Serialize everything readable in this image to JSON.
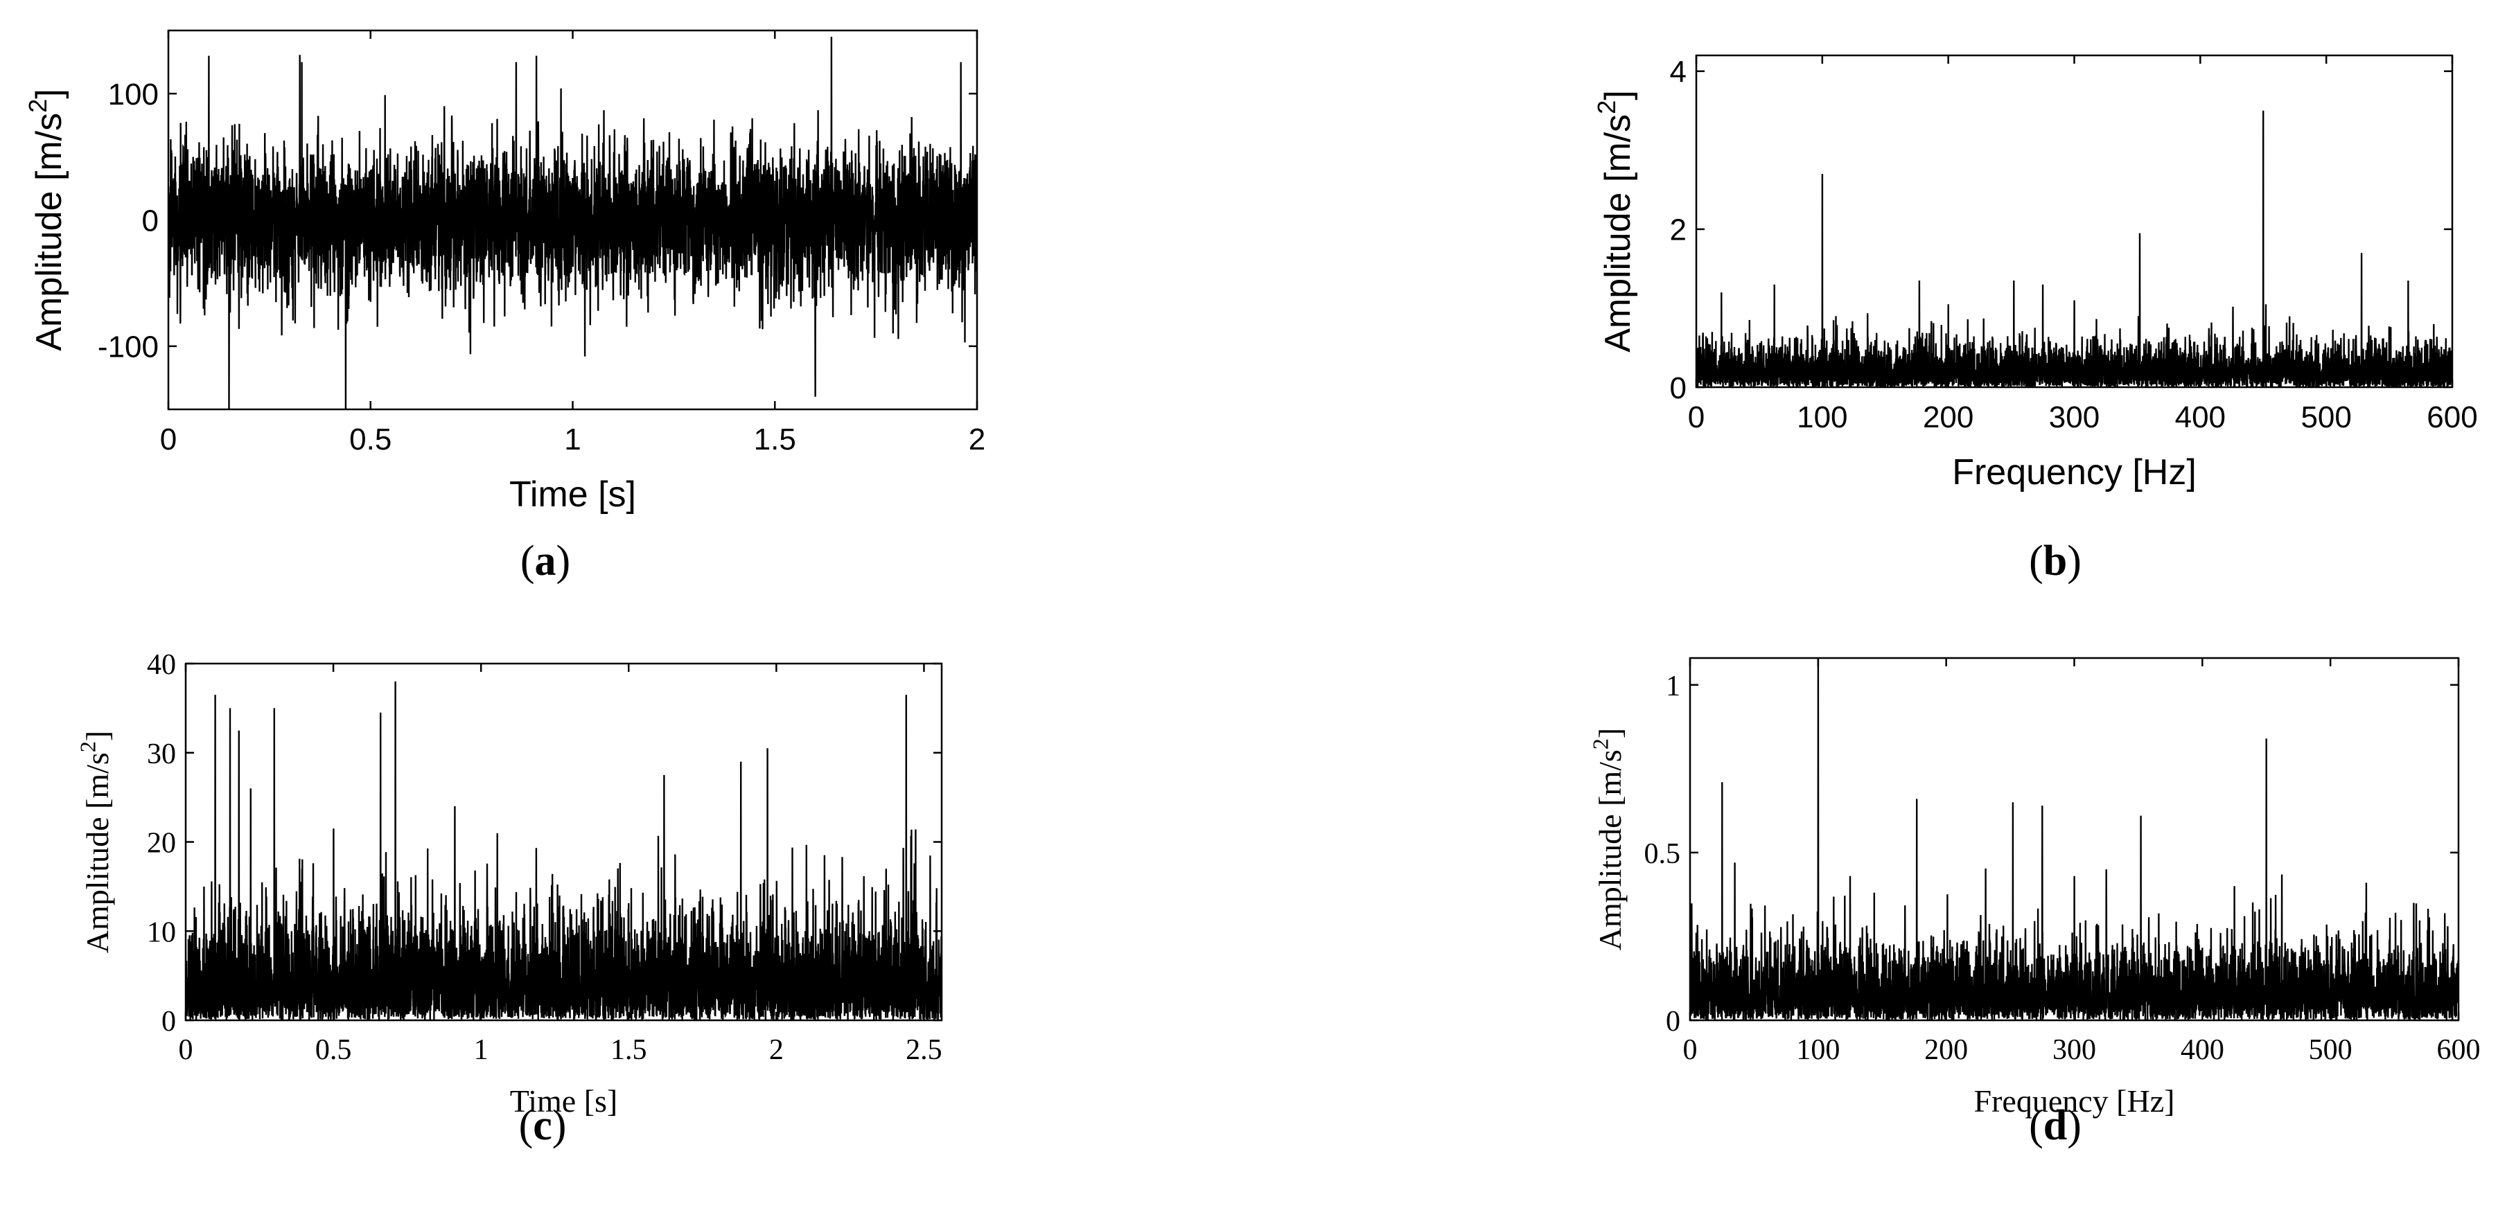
{
  "chart_data": [
    {
      "panel_label": "(a)",
      "panel_letter": "a",
      "type": "line",
      "style": "sans",
      "xlabel": "Time [s]",
      "ylabel_main": "Amplitude [m/s",
      "ylabel_sup": "2",
      "ylabel_end": "]",
      "xlim": [
        0,
        2
      ],
      "ylim": [
        -150,
        150
      ],
      "xticks": [
        0,
        0.5,
        1,
        1.5,
        2
      ],
      "xtick_labels": [
        "0",
        "0.5",
        "1",
        "1.5",
        "2"
      ],
      "yticks": [
        -100,
        0,
        100
      ],
      "ytick_labels": [
        "-100",
        "0",
        "100"
      ],
      "grid": false,
      "signal": {
        "kind": "time",
        "noise_amplitude": 50,
        "peaks": [
          [
            0.1,
            -150
          ],
          [
            0.1,
            130
          ],
          [
            0.15,
            -150
          ],
          [
            0.33,
            125
          ],
          [
            0.86,
            125
          ],
          [
            0.91,
            130
          ],
          [
            1.6,
            -140
          ],
          [
            1.64,
            145
          ],
          [
            1.96,
            125
          ]
        ]
      }
    },
    {
      "panel_label": "(b)",
      "panel_letter": "b",
      "type": "line",
      "style": "sans",
      "xlabel": "Frequency [Hz]",
      "ylabel_main": "Amplitude [m/s",
      "ylabel_sup": "2",
      "ylabel_end": "]",
      "xlim": [
        0,
        600
      ],
      "ylim": [
        0,
        4.2
      ],
      "xticks": [
        0,
        100,
        200,
        300,
        400,
        500,
        600
      ],
      "xtick_labels": [
        "0",
        "100",
        "200",
        "300",
        "400",
        "500",
        "600"
      ],
      "yticks": [
        0,
        2,
        4
      ],
      "ytick_labels": [
        "0",
        "2",
        "4"
      ],
      "grid": false,
      "signal": {
        "kind": "spectrum",
        "noise_level": 0.3,
        "peaks": [
          [
            20,
            1.2
          ],
          [
            62,
            1.3
          ],
          [
            100,
            2.7
          ],
          [
            177,
            1.35
          ],
          [
            200,
            1.05
          ],
          [
            252,
            1.35
          ],
          [
            275,
            1.3
          ],
          [
            300,
            1.1
          ],
          [
            352,
            1.95
          ],
          [
            450,
            3.5
          ],
          [
            452,
            1.05
          ],
          [
            528,
            1.7
          ],
          [
            565,
            1.35
          ]
        ]
      }
    },
    {
      "panel_label": "(c)",
      "panel_letter": "c",
      "type": "line",
      "style": "serif",
      "xlabel": "Time [s]",
      "ylabel_main": "Amplitude [m/s",
      "ylabel_sup": "2",
      "ylabel_end": "]",
      "xlim": [
        0,
        2.56
      ],
      "ylim": [
        0,
        40
      ],
      "xticks": [
        0,
        0.5,
        1,
        1.5,
        2,
        2.5
      ],
      "xtick_labels": [
        "0",
        "0.5",
        "1",
        "1.5",
        "2",
        "2.5"
      ],
      "yticks": [
        0,
        10,
        20,
        30,
        40
      ],
      "ytick_labels": [
        "0",
        "10",
        "20",
        "30",
        "40"
      ],
      "grid": false,
      "signal": {
        "kind": "envelope",
        "noise_level": 7,
        "peaks": [
          [
            0.1,
            36.5
          ],
          [
            0.15,
            35
          ],
          [
            0.18,
            32.5
          ],
          [
            0.22,
            26
          ],
          [
            0.3,
            35
          ],
          [
            0.66,
            34.5
          ],
          [
            0.71,
            38
          ],
          [
            1.62,
            27.5
          ],
          [
            1.88,
            29
          ],
          [
            1.97,
            30.5
          ],
          [
            2.44,
            36.5
          ]
        ]
      }
    },
    {
      "panel_label": "(d)",
      "panel_letter": "d",
      "type": "line",
      "style": "serif",
      "xlabel": "Frequency [Hz]",
      "ylabel_main": "Amplitude [m/s",
      "ylabel_sup": "2",
      "ylabel_end": "]",
      "xlim": [
        0,
        600
      ],
      "ylim": [
        0,
        1.08
      ],
      "xticks": [
        0,
        100,
        200,
        300,
        400,
        500,
        600
      ],
      "xtick_labels": [
        "0",
        "100",
        "200",
        "300",
        "400",
        "500",
        "600"
      ],
      "yticks": [
        0,
        0.5,
        1
      ],
      "ytick_labels": [
        "0",
        "0.5",
        "1"
      ],
      "grid": false,
      "signal": {
        "kind": "spectrum",
        "noise_level": 0.12,
        "peaks": [
          [
            25,
            0.71
          ],
          [
            35,
            0.47
          ],
          [
            100,
            1.08
          ],
          [
            125,
            0.43
          ],
          [
            177,
            0.66
          ],
          [
            252,
            0.65
          ],
          [
            275,
            0.64
          ],
          [
            300,
            0.43
          ],
          [
            325,
            0.45
          ],
          [
            352,
            0.61
          ],
          [
            425,
            0.4
          ],
          [
            450,
            0.84
          ],
          [
            528,
            0.41
          ],
          [
            565,
            0.35
          ]
        ]
      }
    }
  ]
}
